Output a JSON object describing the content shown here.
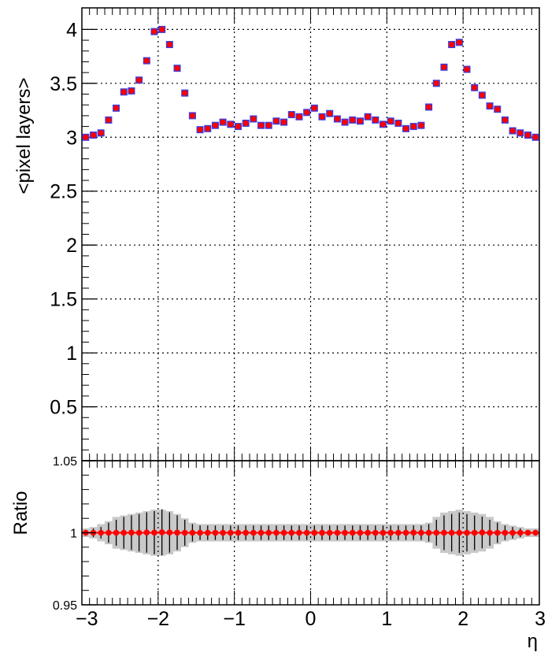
{
  "chart_data": [
    {
      "type": "scatter",
      "title": "",
      "xlabel": "",
      "ylabel": "<pixel layers>",
      "xlim": [
        -3,
        3
      ],
      "ylim": [
        0,
        4.2
      ],
      "grid": true,
      "y_ticks": [
        "0",
        "0.5",
        "1",
        "1.5",
        "2",
        "2.5",
        "3",
        "3.5",
        "4"
      ],
      "x": [
        -2.95,
        -2.85,
        -2.75,
        -2.65,
        -2.55,
        -2.45,
        -2.35,
        -2.25,
        -2.15,
        -2.05,
        -1.95,
        -1.85,
        -1.75,
        -1.65,
        -1.55,
        -1.45,
        -1.35,
        -1.25,
        -1.15,
        -1.05,
        -0.95,
        -0.85,
        -0.75,
        -0.65,
        -0.55,
        -0.45,
        -0.35,
        -0.25,
        -0.15,
        -0.05,
        0.05,
        0.15,
        0.25,
        0.35,
        0.45,
        0.55,
        0.65,
        0.75,
        0.85,
        0.95,
        1.05,
        1.15,
        1.25,
        1.35,
        1.45,
        1.55,
        1.65,
        1.75,
        1.85,
        1.95,
        2.05,
        2.15,
        2.25,
        2.35,
        2.45,
        2.55,
        2.65,
        2.75,
        2.85,
        2.95
      ],
      "series": [
        {
          "color": "#3b3bdc",
          "marker": "square",
          "values": [
            3.0,
            3.02,
            3.04,
            3.16,
            3.27,
            3.42,
            3.43,
            3.53,
            3.71,
            3.98,
            4.0,
            3.86,
            3.64,
            3.41,
            3.2,
            3.07,
            3.08,
            3.11,
            3.14,
            3.12,
            3.1,
            3.13,
            3.17,
            3.11,
            3.11,
            3.15,
            3.14,
            3.21,
            3.19,
            3.23,
            3.27,
            3.19,
            3.22,
            3.17,
            3.14,
            3.16,
            3.15,
            3.19,
            3.16,
            3.12,
            3.15,
            3.13,
            3.08,
            3.1,
            3.11,
            3.28,
            3.5,
            3.65,
            3.86,
            3.88,
            3.63,
            3.46,
            3.39,
            3.29,
            3.26,
            3.16,
            3.06,
            3.04,
            3.02,
            3.0
          ]
        },
        {
          "color": "#ff0000",
          "marker": "circle",
          "values": [
            3.0,
            3.02,
            3.04,
            3.16,
            3.27,
            3.42,
            3.43,
            3.53,
            3.71,
            3.98,
            4.0,
            3.86,
            3.64,
            3.41,
            3.2,
            3.07,
            3.08,
            3.11,
            3.14,
            3.12,
            3.1,
            3.13,
            3.17,
            3.11,
            3.11,
            3.15,
            3.14,
            3.21,
            3.19,
            3.23,
            3.27,
            3.19,
            3.22,
            3.17,
            3.14,
            3.16,
            3.15,
            3.19,
            3.16,
            3.12,
            3.15,
            3.13,
            3.08,
            3.1,
            3.11,
            3.28,
            3.5,
            3.65,
            3.86,
            3.88,
            3.63,
            3.46,
            3.39,
            3.29,
            3.26,
            3.16,
            3.06,
            3.04,
            3.02,
            3.0
          ]
        }
      ]
    },
    {
      "type": "scatter",
      "title": "",
      "xlabel": "η",
      "ylabel": "Ratio",
      "xlim": [
        -3,
        3
      ],
      "ylim": [
        0.95,
        1.05
      ],
      "grid": true,
      "x_ticks": [
        "−3",
        "−2",
        "−1",
        "0",
        "1",
        "2",
        "3"
      ],
      "y_ticks": [
        "0.95",
        "1",
        "1.05"
      ],
      "x": [
        -2.95,
        -2.85,
        -2.75,
        -2.65,
        -2.55,
        -2.45,
        -2.35,
        -2.25,
        -2.15,
        -2.05,
        -1.95,
        -1.85,
        -1.75,
        -1.65,
        -1.55,
        -1.45,
        -1.35,
        -1.25,
        -1.15,
        -1.05,
        -0.95,
        -0.85,
        -0.75,
        -0.65,
        -0.55,
        -0.45,
        -0.35,
        -0.25,
        -0.15,
        -0.05,
        0.05,
        0.15,
        0.25,
        0.35,
        0.45,
        0.55,
        0.65,
        0.75,
        0.85,
        0.95,
        1.05,
        1.15,
        1.25,
        1.35,
        1.45,
        1.55,
        1.65,
        1.75,
        1.85,
        1.95,
        2.05,
        2.15,
        2.25,
        2.35,
        2.45,
        2.55,
        2.65,
        2.75,
        2.85,
        2.95
      ],
      "series": [
        {
          "color": "#ff0000",
          "marker": "circle",
          "values": [
            1.0,
            1.0,
            1.0,
            1.0,
            1.0,
            1.0,
            1.0001,
            1.0,
            1.0002,
            1.0001,
            1.0003,
            1.0002,
            1.0001,
            1.0,
            1.0,
            1.0,
            1.0,
            1.0,
            1.0,
            1.0,
            1.0,
            1.0,
            1.0,
            1.0,
            1.0,
            1.0,
            1.0,
            1.0,
            1.0,
            1.0,
            1.0,
            1.0,
            1.0,
            1.0,
            1.0,
            1.0,
            1.0,
            1.0,
            1.0,
            1.0,
            1.0,
            1.0,
            1.0,
            1.0001,
            1.0,
            1.0,
            1.0,
            1.0,
            1.0,
            1.0,
            1.0,
            1.0,
            1.0002,
            1.0,
            1.0,
            1.0,
            1.0,
            1.0,
            1.0,
            1.0
          ],
          "errors": [
            0.002,
            0.003,
            0.004,
            0.007,
            0.009,
            0.011,
            0.012,
            0.013,
            0.014,
            0.015,
            0.016,
            0.014,
            0.012,
            0.009,
            0.006,
            0.005,
            0.005,
            0.005,
            0.005,
            0.005,
            0.005,
            0.005,
            0.005,
            0.005,
            0.005,
            0.005,
            0.005,
            0.005,
            0.005,
            0.005,
            0.005,
            0.005,
            0.005,
            0.005,
            0.005,
            0.005,
            0.005,
            0.005,
            0.005,
            0.005,
            0.005,
            0.005,
            0.005,
            0.005,
            0.005,
            0.006,
            0.009,
            0.012,
            0.013,
            0.014,
            0.013,
            0.012,
            0.011,
            0.009,
            0.007,
            0.005,
            0.004,
            0.003,
            0.002,
            0.002
          ]
        }
      ],
      "band": {
        "color": "#c8c8c8",
        "errors": [
          0.003,
          0.004,
          0.006,
          0.008,
          0.011,
          0.012,
          0.013,
          0.014,
          0.015,
          0.016,
          0.016,
          0.015,
          0.013,
          0.01,
          0.007,
          0.006,
          0.006,
          0.006,
          0.006,
          0.006,
          0.006,
          0.006,
          0.006,
          0.006,
          0.006,
          0.006,
          0.006,
          0.006,
          0.006,
          0.006,
          0.006,
          0.006,
          0.006,
          0.006,
          0.006,
          0.006,
          0.006,
          0.006,
          0.006,
          0.006,
          0.006,
          0.006,
          0.006,
          0.006,
          0.006,
          0.007,
          0.011,
          0.014,
          0.015,
          0.016,
          0.015,
          0.014,
          0.013,
          0.011,
          0.008,
          0.006,
          0.005,
          0.004,
          0.003,
          0.003
        ]
      }
    }
  ]
}
